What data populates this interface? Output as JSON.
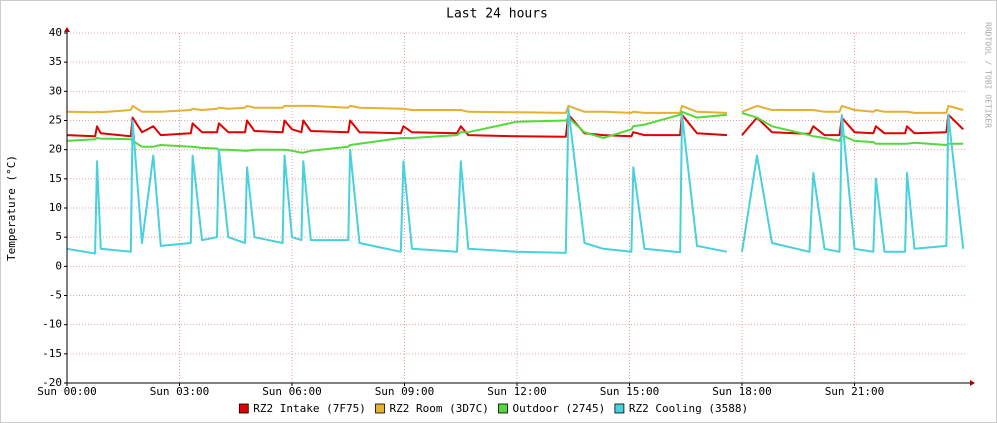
{
  "chart_data": {
    "type": "line",
    "title": "Last 24 hours",
    "y_label": "Temperature (°C)",
    "watermark": "RRDTOOL / TOBI OETIKER",
    "x": [
      0.0,
      0.75,
      0.8,
      0.9,
      1.7,
      1.75,
      2.0,
      2.3,
      2.5,
      3.3,
      3.35,
      3.6,
      4.0,
      4.05,
      4.3,
      4.75,
      4.8,
      5.0,
      5.75,
      5.8,
      6.0,
      6.25,
      6.3,
      6.5,
      7.5,
      7.55,
      7.8,
      8.9,
      8.97,
      9.2,
      10.4,
      10.5,
      10.7,
      12.0,
      13.3,
      13.37,
      13.8,
      14.3,
      15.05,
      15.1,
      15.4,
      16.35,
      16.4,
      16.8,
      17.6,
      17.75,
      18.0,
      18.4,
      18.8,
      19.8,
      19.9,
      20.2,
      20.6,
      20.66,
      21.0,
      21.5,
      21.57,
      21.8,
      22.35,
      22.4,
      22.6,
      23.45,
      23.5,
      23.9
    ],
    "series": [
      {
        "name": "RZ2 Intake (7F75)",
        "color": "#e00000",
        "values": [
          22.5,
          22.3,
          24,
          22.8,
          22.3,
          25.5,
          23,
          24,
          22.5,
          22.8,
          24.5,
          23,
          23,
          24.5,
          23,
          23,
          25,
          23.2,
          23,
          25,
          23.5,
          23,
          25,
          23.2,
          23,
          25,
          23,
          22.8,
          24,
          23,
          22.8,
          24,
          22.5,
          22.3,
          22.2,
          26,
          22.8,
          22.5,
          22.3,
          23,
          22.5,
          22.5,
          26,
          22.8,
          22.5,
          null,
          22.5,
          25.5,
          23,
          22.7,
          24,
          22.5,
          22.5,
          25.5,
          23,
          22.8,
          24,
          22.8,
          22.8,
          24,
          22.8,
          23,
          26,
          23.5
        ]
      },
      {
        "name": "RZ2 Room (3D7C)",
        "color": "#e6b030",
        "values": [
          26.5,
          26.4,
          26.5,
          26.4,
          26.8,
          27.5,
          26.5,
          26.5,
          26.5,
          26.8,
          27,
          26.8,
          27,
          27.2,
          27,
          27.2,
          27.5,
          27.2,
          27.2,
          27.5,
          27.5,
          27.5,
          27.5,
          27.5,
          27.2,
          27.5,
          27.2,
          27,
          27,
          26.8,
          26.8,
          26.8,
          26.5,
          26.4,
          26.3,
          27.5,
          26.5,
          26.5,
          26.3,
          26.5,
          26.3,
          26.3,
          27.5,
          26.5,
          26.3,
          null,
          26.5,
          27.5,
          26.8,
          26.8,
          26.8,
          26.5,
          26.5,
          27.5,
          26.8,
          26.5,
          26.8,
          26.5,
          26.5,
          26.5,
          26.3,
          26.3,
          27.5,
          26.8
        ]
      },
      {
        "name": "Outdoor (2745)",
        "color": "#55d83c",
        "values": [
          21.5,
          21.8,
          22,
          21.9,
          21.8,
          21.5,
          20.5,
          20.5,
          20.8,
          20.5,
          20.5,
          20.3,
          20.2,
          20,
          20,
          19.8,
          19.8,
          20,
          20,
          20,
          19.8,
          19.5,
          19.5,
          19.8,
          20.5,
          20.8,
          21,
          22,
          22,
          22,
          22.5,
          23,
          23,
          24.8,
          25,
          25.5,
          23,
          22,
          23.5,
          24,
          24.3,
          26,
          26.5,
          25.5,
          26,
          null,
          26.3,
          25.5,
          24,
          22.5,
          22.3,
          22,
          21.5,
          22.5,
          21.5,
          21.3,
          21,
          21,
          21,
          21,
          21.2,
          20.8,
          21,
          21
        ]
      },
      {
        "name": "RZ2 Cooling (3588)",
        "color": "#48d0dc",
        "values": [
          3,
          2.2,
          18,
          3,
          2.5,
          25,
          4,
          19,
          3.5,
          4,
          19,
          4.5,
          5,
          20,
          5,
          4,
          17,
          5,
          4,
          19,
          5,
          4.5,
          18,
          4.5,
          4.5,
          20,
          4,
          2.5,
          18,
          3,
          2.5,
          18,
          3,
          2.5,
          2.3,
          27,
          4,
          3,
          2.5,
          17,
          3,
          2.4,
          26,
          3.5,
          2.5,
          null,
          2.5,
          19,
          4,
          2.5,
          16,
          3,
          2.5,
          26,
          3,
          2.5,
          15,
          2.5,
          2.5,
          16,
          3,
          3.5,
          26,
          3
        ]
      }
    ],
    "xlim": [
      0,
      24
    ],
    "xticks": [
      {
        "value": 0,
        "label": "Sun 00:00"
      },
      {
        "value": 3,
        "label": "Sun 03:00"
      },
      {
        "value": 6,
        "label": "Sun 06:00"
      },
      {
        "value": 9,
        "label": "Sun 09:00"
      },
      {
        "value": 12,
        "label": "Sun 12:00"
      },
      {
        "value": 15,
        "label": "Sun 15:00"
      },
      {
        "value": 18,
        "label": "Sun 18:00"
      },
      {
        "value": 21,
        "label": "Sun 21:00"
      }
    ],
    "ylim": [
      -20,
      40
    ],
    "yticks": [
      -20,
      -15,
      -10,
      -5,
      0,
      5,
      10,
      15,
      20,
      25,
      30,
      35,
      40
    ],
    "grid": true
  }
}
